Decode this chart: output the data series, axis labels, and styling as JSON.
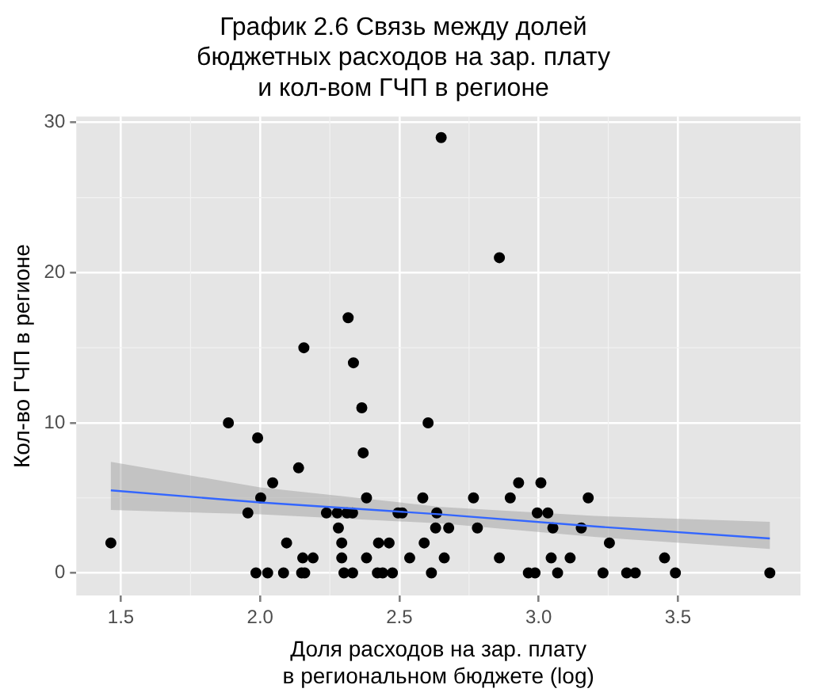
{
  "chart_data": {
    "type": "scatter",
    "title": "График 2.6 Связь между долей\nбюджетных расходов на зар. плату\nи кол-вом ГЧП в регионе",
    "xlabel": "Доля расходов на зар. плату\nв региональном бюджете (log)",
    "ylabel": "Кол-во ГЧП в регионе",
    "xlim": [
      1.34,
      3.94
    ],
    "ylim": [
      -1.5,
      30.4
    ],
    "xticks": [
      1.5,
      {
        "value": 2,
        "label": "2.0"
      },
      2.5,
      {
        "value": 3,
        "label": "3.0"
      },
      3.5
    ],
    "yticks": [
      0,
      10,
      20,
      30
    ],
    "grid": true,
    "legend": false,
    "marker": "circle",
    "series": [
      {
        "color": "#000000",
        "x": [
          1.464,
          1.886,
          1.991,
          1.956,
          2.002,
          2.045,
          2.138,
          2.095,
          2.157,
          1.985,
          2.027,
          2.084,
          2.149,
          2.16,
          2.153,
          2.19,
          2.238,
          2.277,
          2.312,
          2.332,
          2.281,
          2.293,
          2.293,
          2.301,
          2.332,
          2.316,
          2.335,
          2.365,
          2.37,
          2.382,
          2.382,
          2.425,
          2.463,
          2.421,
          2.44,
          2.475,
          2.495,
          2.51,
          2.537,
          2.584,
          2.603,
          2.589,
          2.615,
          2.634,
          2.63,
          2.65,
          2.859,
          2.677,
          2.661,
          2.766,
          2.78,
          2.859,
          2.898,
          2.928,
          3.008,
          2.995,
          3.033,
          3.051,
          2.963,
          2.987,
          3.045,
          3.068,
          3.113,
          3.178,
          3.153,
          3.231,
          3.254,
          3.316,
          3.347,
          3.452,
          3.491,
          3.83
        ],
        "values": [
          2,
          10,
          9,
          4,
          5,
          6,
          7,
          2,
          15,
          0,
          0,
          0,
          0,
          0,
          1,
          1,
          4,
          4,
          4,
          4,
          3,
          2,
          1,
          0,
          0,
          17,
          14,
          11,
          8,
          5,
          1,
          2,
          2,
          0,
          0,
          0,
          4,
          4,
          1,
          5,
          10,
          2,
          0,
          4,
          3,
          29,
          21,
          3,
          1,
          5,
          3,
          1,
          5,
          6,
          6,
          4,
          4,
          3,
          0,
          0,
          1,
          0,
          1,
          5,
          3,
          0,
          2,
          0,
          0,
          1,
          0,
          0
        ]
      },
      {
        "type": "line",
        "marker": "none",
        "color": "#3366ff",
        "x": [
          1.464,
          2.0,
          2.65,
          3.2,
          3.83
        ],
        "values": [
          5.5,
          4.7,
          3.9,
          3.1,
          2.3
        ],
        "lower": [
          4.2,
          3.9,
          3.3,
          2.4,
          1.6
        ],
        "upper": [
          7.4,
          5.7,
          4.4,
          3.8,
          3.4
        ]
      }
    ]
  }
}
